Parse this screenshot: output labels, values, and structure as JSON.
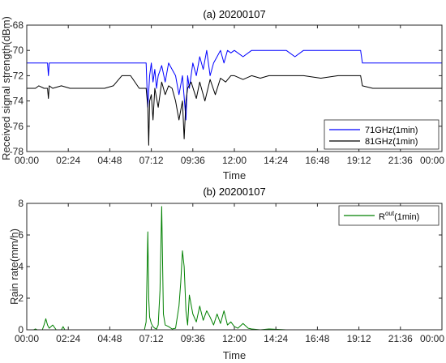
{
  "chart_data": [
    {
      "type": "line",
      "title": "(a) 20200107",
      "xlabel": "Time",
      "ylabel": "Received signal strength(dBm)",
      "x_ticks": [
        "00:00",
        "02:24",
        "04:48",
        "07:12",
        "09:36",
        "12:00",
        "14:24",
        "16:48",
        "19:12",
        "21:36",
        "00:00"
      ],
      "x_range_hours": [
        0,
        24
      ],
      "y_ticks": [
        "-68",
        "-70",
        "-72",
        "-74",
        "-76",
        "-78"
      ],
      "ylim": [
        -78,
        -68
      ],
      "grid": false,
      "legend_position": "bottom-right",
      "colors": {
        "71GHz": "#0000ff",
        "81GHz": "#000000"
      },
      "series": [
        {
          "name": "71GHz(1min)",
          "color": "#0000ff",
          "x": [
            0,
            1.2,
            1.25,
            1.3,
            1.9,
            2.5,
            3.5,
            4.5,
            5.5,
            6.5,
            6.9,
            6.95,
            7.0,
            7.1,
            7.2,
            7.3,
            7.4,
            7.5,
            7.6,
            7.8,
            8.0,
            8.2,
            8.4,
            8.6,
            8.8,
            9.0,
            9.2,
            9.3,
            9.4,
            9.6,
            9.8,
            10.0,
            10.2,
            10.4,
            10.6,
            10.8,
            11.0,
            11.2,
            11.4,
            11.6,
            11.8,
            12.0,
            12.5,
            13.0,
            13.5,
            14.0,
            15.0,
            15.5,
            16.0,
            17.0,
            18.0,
            19.0,
            19.3,
            19.4,
            20.0,
            21.0,
            22.0,
            23.0,
            24.0
          ],
          "y": [
            -71,
            -71,
            -72,
            -71,
            -71,
            -71,
            -71,
            -71,
            -71,
            -71,
            -71,
            -73,
            -74.5,
            -72,
            -71,
            -72.5,
            -71.5,
            -73,
            -72,
            -71.2,
            -72.5,
            -71,
            -71.5,
            -72,
            -73.5,
            -72,
            -75.5,
            -72,
            -73,
            -71,
            -72,
            -70.5,
            -71.5,
            -70,
            -72,
            -71,
            -70.5,
            -70,
            -71,
            -70,
            -70.2,
            -70,
            -70.5,
            -70,
            -70,
            -70,
            -70,
            -70.5,
            -70,
            -70,
            -70,
            -70,
            -70,
            -71,
            -71,
            -71,
            -71,
            -71,
            -71
          ]
        },
        {
          "name": "81GHz(1min)",
          "color": "#000000",
          "x": [
            0,
            0.5,
            0.7,
            1.0,
            1.2,
            1.25,
            1.3,
            1.5,
            2.0,
            2.5,
            3.0,
            3.5,
            4.0,
            4.5,
            5.0,
            5.5,
            6.0,
            6.5,
            6.9,
            7.0,
            7.05,
            7.1,
            7.2,
            7.3,
            7.4,
            7.6,
            7.8,
            8.0,
            8.2,
            8.4,
            8.6,
            8.8,
            9.0,
            9.1,
            9.2,
            9.3,
            9.5,
            9.8,
            10.0,
            10.3,
            10.6,
            10.9,
            11.2,
            11.5,
            11.8,
            12.0,
            12.5,
            13.0,
            13.5,
            14.0,
            15.0,
            16.0,
            17.0,
            18.0,
            19.0,
            19.3,
            19.4,
            20.0,
            21.0,
            22.0,
            23.0,
            24.0
          ],
          "y": [
            -73,
            -73,
            -72.8,
            -73,
            -73,
            -73.8,
            -72.8,
            -73,
            -72.8,
            -73,
            -73,
            -73,
            -73,
            -73,
            -72.8,
            -72,
            -72,
            -73,
            -73,
            -74.5,
            -77.5,
            -74,
            -73.5,
            -75.5,
            -73,
            -74.5,
            -72.5,
            -73.5,
            -72.8,
            -73,
            -74,
            -75.5,
            -74,
            -77,
            -74,
            -73,
            -72.5,
            -73.8,
            -72.5,
            -74,
            -72.3,
            -73.5,
            -72.2,
            -72.5,
            -72,
            -72,
            -72.3,
            -72,
            -72.2,
            -72,
            -72,
            -72,
            -72.2,
            -72,
            -72,
            -72,
            -72.8,
            -73,
            -73,
            -73,
            -73,
            -73
          ]
        }
      ]
    },
    {
      "type": "line",
      "title": "(b) 20200107",
      "xlabel": "Time",
      "ylabel": "Rain rate(mm/h)",
      "x_ticks": [
        "00:00",
        "02:24",
        "04:48",
        "07:12",
        "09:36",
        "12:00",
        "14:24",
        "16:48",
        "19:12",
        "21:36",
        "00:00"
      ],
      "x_range_hours": [
        0,
        24
      ],
      "y_ticks": [
        "0",
        "2",
        "4",
        "6",
        "8"
      ],
      "ylim": [
        0,
        8
      ],
      "grid": false,
      "legend_position": "top-right",
      "series": [
        {
          "name": "R",
          "name_superscript": "out",
          "name_suffix": "(1min)",
          "color": "#008000",
          "x": [
            0,
            0.4,
            0.5,
            0.6,
            0.9,
            1.0,
            1.1,
            1.2,
            1.3,
            1.5,
            1.7,
            2.0,
            2.1,
            2.2,
            2.4,
            3.0,
            4.5,
            6.0,
            6.5,
            6.8,
            6.9,
            7.0,
            7.05,
            7.1,
            7.2,
            7.3,
            7.4,
            7.5,
            7.6,
            7.7,
            7.8,
            7.9,
            8.0,
            8.2,
            8.4,
            8.6,
            8.8,
            8.9,
            9.0,
            9.1,
            9.2,
            9.3,
            9.4,
            9.6,
            9.8,
            10.0,
            10.2,
            10.4,
            10.6,
            10.8,
            11.0,
            11.2,
            11.4,
            11.6,
            11.8,
            12.0,
            12.2,
            12.5,
            12.8,
            13.0,
            13.5,
            14.0,
            15.0,
            16.0,
            18.0,
            19.0,
            20.0,
            21.0,
            22.0,
            23.0,
            24.0
          ],
          "y": [
            0,
            0,
            0.05,
            0,
            0,
            0.3,
            0.7,
            0.3,
            0.1,
            0.3,
            0,
            0,
            0.2,
            0,
            0,
            0,
            0,
            0,
            0,
            0,
            0.5,
            6.2,
            2.0,
            0.8,
            0.4,
            0.2,
            0.1,
            0.05,
            0.3,
            2.5,
            7.8,
            1.0,
            0.3,
            0.2,
            0.05,
            0.1,
            1.5,
            3.0,
            5.0,
            4.0,
            1.2,
            0.3,
            2.2,
            1.0,
            0.5,
            1.5,
            0.6,
            1.2,
            0.8,
            0.3,
            1.0,
            0.4,
            1.2,
            0.3,
            0.5,
            0.2,
            0.1,
            0.4,
            0.1,
            0.05,
            0,
            0.05,
            0,
            0,
            0,
            0,
            0,
            0,
            0,
            0,
            0
          ]
        }
      ]
    }
  ]
}
